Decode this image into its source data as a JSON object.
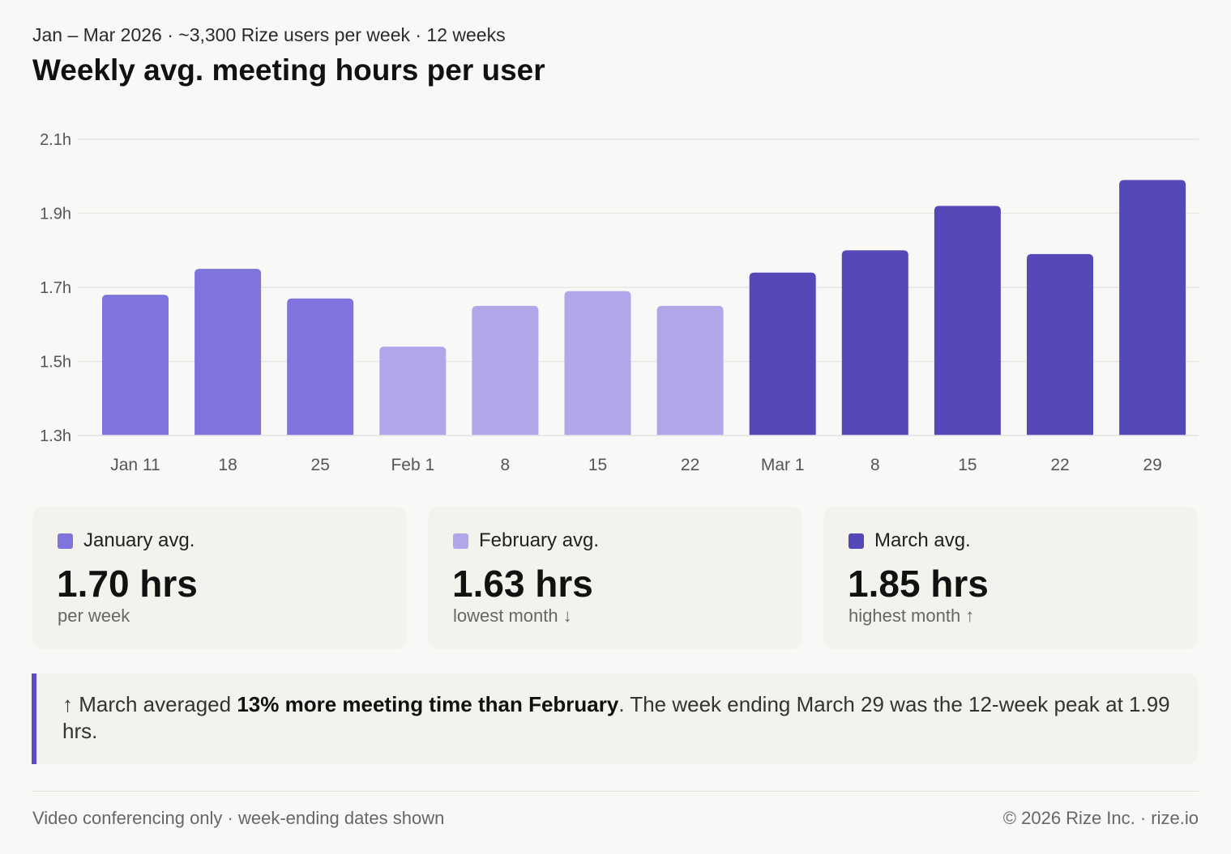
{
  "header": {
    "subtitle": "Jan – Mar 2026 · ~3,300 Rize users per week · 12 weeks",
    "title": "Weekly avg. meeting hours per user"
  },
  "colors": {
    "january": "#7f74de",
    "february": "#b0a6ea",
    "march": "#5548b8",
    "grid": "#e6e6e3",
    "accent": "#5d4cc4"
  },
  "chart_data": {
    "type": "bar",
    "title": "Weekly avg. meeting hours per user",
    "categories": [
      "Jan 11",
      "18",
      "25",
      "Feb 1",
      "8",
      "15",
      "22",
      "Mar 1",
      "8",
      "15",
      "22",
      "29"
    ],
    "values": [
      1.68,
      1.75,
      1.67,
      1.54,
      1.65,
      1.69,
      1.65,
      1.74,
      1.8,
      1.92,
      1.79,
      1.99
    ],
    "groups": [
      "january",
      "january",
      "january",
      "february",
      "february",
      "february",
      "february",
      "march",
      "march",
      "march",
      "march",
      "march"
    ],
    "ylim": [
      1.3,
      2.1
    ],
    "yticks": [
      1.3,
      1.5,
      1.7,
      1.9,
      2.1
    ],
    "ytick_labels": [
      "1.3h",
      "1.5h",
      "1.7h",
      "1.9h",
      "2.1h"
    ],
    "unit": "hours",
    "grid": true,
    "xlabel": "",
    "ylabel": ""
  },
  "cards": [
    {
      "label": "January avg.",
      "value": "1.70 hrs",
      "note": "per week",
      "color_key": "january"
    },
    {
      "label": "February avg.",
      "value": "1.63 hrs",
      "note": "lowest month ↓",
      "color_key": "february"
    },
    {
      "label": "March avg.",
      "value": "1.85 hrs",
      "note": "highest month ↑",
      "color_key": "march"
    }
  ],
  "insight": {
    "prefix": "↑ March averaged ",
    "highlight": "13% more meeting time than February",
    "suffix": ". The week ending March 29 was the 12-week peak at 1.99 hrs."
  },
  "footer": {
    "left": "Video conferencing only · week-ending dates shown",
    "right": "© 2026 Rize Inc. · rize.io"
  }
}
